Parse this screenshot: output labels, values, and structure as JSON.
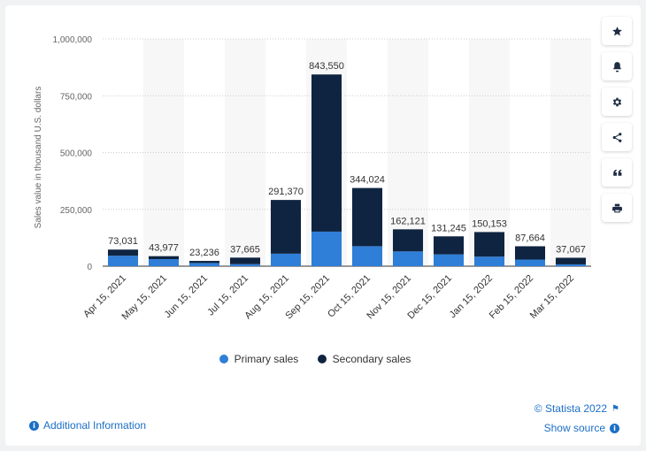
{
  "chart_data": {
    "type": "bar",
    "stacked": true,
    "title": "",
    "xlabel": "",
    "ylabel": "Sales value in thousand U.S. dollars",
    "ylim": [
      0,
      1000000
    ],
    "yticks": [
      0,
      250000,
      500000,
      750000,
      1000000
    ],
    "ytick_labels": [
      "0",
      "250,000",
      "500,000",
      "750,000",
      "1,000,000"
    ],
    "categories": [
      "Apr 15, 2021",
      "May 15, 2021",
      "Jun 15, 2021",
      "Jul 15, 2021",
      "Aug 15, 2021",
      "Sep 15, 2021",
      "Oct 15, 2021",
      "Nov 15, 2021",
      "Dec 15, 2021",
      "Jan 15, 2022",
      "Feb 15, 2022",
      "Mar 15, 2022"
    ],
    "series": [
      {
        "name": "Primary sales",
        "color": "#2f7ed8",
        "values": [
          46000,
          31000,
          14000,
          9000,
          55000,
          152000,
          88000,
          65000,
          52000,
          42000,
          29000,
          8000
        ]
      },
      {
        "name": "Secondary sales",
        "color": "#0f2440",
        "values": [
          27031,
          12977,
          9236,
          28665,
          236370,
          691550,
          256024,
          97121,
          79245,
          108153,
          58664,
          29067
        ]
      }
    ],
    "totals": [
      73031,
      43977,
      23236,
      37665,
      291370,
      843550,
      344024,
      162121,
      131245,
      150153,
      87664,
      37067
    ],
    "total_labels": [
      "73,031",
      "43,977",
      "23,236",
      "37,665",
      "291,370",
      "843,550",
      "344,024",
      "162,121",
      "131,245",
      "150,153",
      "87,664",
      "37,067"
    ],
    "legend": [
      "Primary sales",
      "Secondary sales"
    ],
    "legend_position": "bottom",
    "grid": true
  },
  "footer": {
    "additional_info": "Additional Information",
    "copyright": "© Statista 2022",
    "show_source": "Show source"
  },
  "colors": {
    "primary": "#2f7ed8",
    "secondary": "#0f2440",
    "link": "#1c6fc7"
  }
}
